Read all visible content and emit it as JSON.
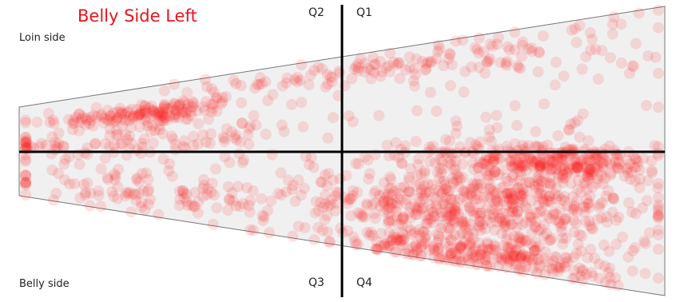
{
  "chart_data": {
    "type": "scatter",
    "title": "Belly Side Left",
    "xlabel": "",
    "ylabel": "",
    "xlim": [
      0,
      100
    ],
    "ylim": [
      0,
      100
    ],
    "xdivide": 50,
    "ydivide": 50,
    "edge_labels": {
      "top": "Loin side",
      "bottom": "Belly side"
    },
    "quadrant_labels": [
      "Q1",
      "Q2",
      "Q3",
      "Q4"
    ],
    "point_color": "#ff1a1a",
    "point_opacity": 0.13,
    "region_fill": "#f0f0f0",
    "density_clusters": [
      {
        "region": "top-left loin edge",
        "x": 20,
        "y": 80,
        "spread_x": 8,
        "spread_y": 4,
        "n": 150
      },
      {
        "region": "left side along axis",
        "x": 15,
        "y": 58,
        "spread_x": 12,
        "spread_y": 8,
        "n": 90
      },
      {
        "region": "upper band near top edge",
        "x": 55,
        "y": 92,
        "spread_x": 10,
        "spread_y": 3,
        "n": 80
      },
      {
        "region": "upper right",
        "x": 80,
        "y": 88,
        "spread_x": 10,
        "spread_y": 6,
        "n": 60
      },
      {
        "region": "lower left belly edge",
        "x": 25,
        "y": 18,
        "spread_x": 15,
        "spread_y": 7,
        "n": 110
      },
      {
        "region": "Q4 dense core",
        "x": 78,
        "y": 30,
        "spread_x": 10,
        "spread_y": 14,
        "n": 500
      },
      {
        "region": "Q4 near axis",
        "x": 85,
        "y": 46,
        "spread_x": 8,
        "spread_y": 3,
        "n": 180
      },
      {
        "region": "Q4 lower left",
        "x": 62,
        "y": 22,
        "spread_x": 8,
        "spread_y": 12,
        "n": 220
      },
      {
        "region": "Q4 bottom edge",
        "x": 72,
        "y": 6,
        "spread_x": 10,
        "spread_y": 3,
        "n": 160
      },
      {
        "region": "scattered background",
        "x": 50,
        "y": 50,
        "spread_x": 28,
        "spread_y": 28,
        "n": 160
      }
    ]
  }
}
